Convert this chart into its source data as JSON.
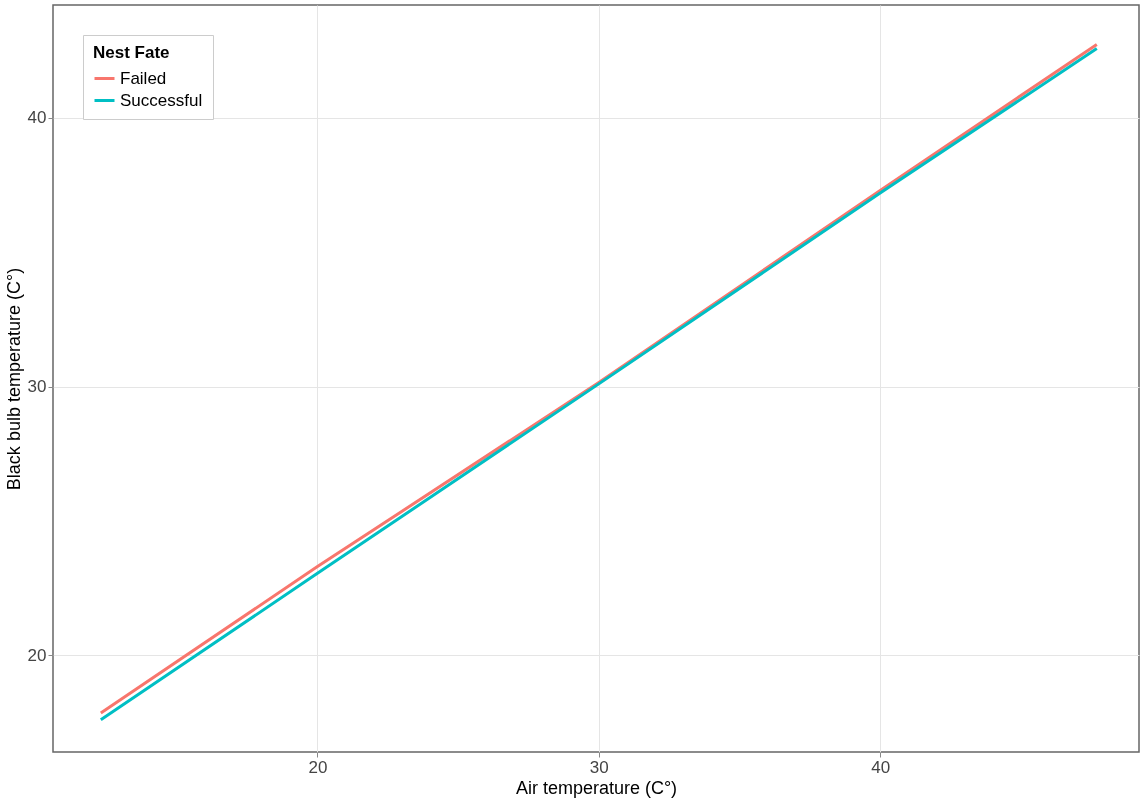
{
  "chart_data": {
    "type": "line",
    "xlabel": "Air temperature (C°)",
    "ylabel": "Black bulb temperature (C°)",
    "legend_title": "Nest Fate",
    "xlim": [
      10.6,
      49.2
    ],
    "xticks": [
      20,
      30,
      40
    ],
    "ylim": [
      16.4,
      44.2
    ],
    "yticks": [
      20,
      30,
      40
    ],
    "grid": true,
    "legend": "top left",
    "series": [
      {
        "name": "Failed",
        "color": "#f8766d",
        "x": [
          12.3,
          20,
          30,
          40,
          47.7
        ],
        "values": [
          17.85,
          23.3,
          30.15,
          37.3,
          42.73
        ]
      },
      {
        "name": "Successful",
        "color": "#00bfc4",
        "x": [
          12.3,
          20,
          30,
          40,
          47.7
        ],
        "values": [
          17.6,
          23.05,
          30.1,
          37.2,
          42.58
        ]
      }
    ]
  }
}
